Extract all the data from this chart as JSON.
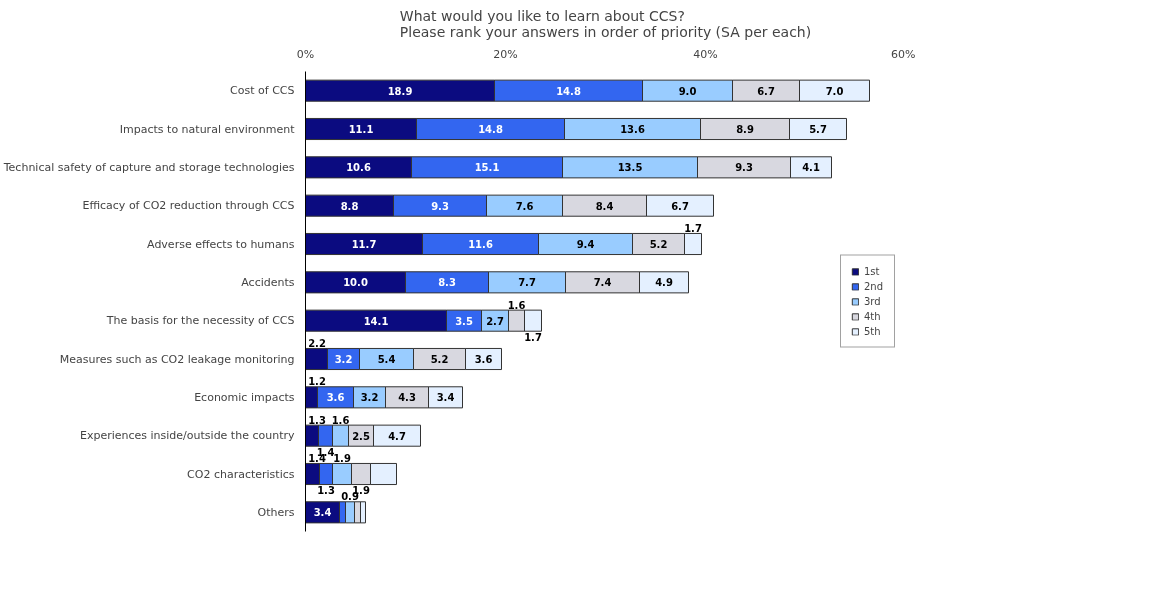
{
  "chart_data": {
    "type": "bar",
    "orientation": "horizontal",
    "stacked": true,
    "title": "What would you like to learn about CCS?\nPlease rank your answers in order of priority (SA per each)",
    "categories": [
      "Cost of CCS",
      "Impacts to natural environment",
      "Technical safety of capture and storage technologies",
      "Efficacy of CO2 reduction through CCS",
      "Adverse effects to humans",
      "Accidents",
      "The basis for the necessity of CCS",
      "Measures such as CO2 leakage monitoring",
      "Economic impacts",
      "Experiences inside/outside the country",
      "CO2 characteristics",
      "Others"
    ],
    "series": [
      {
        "name": "1st",
        "color": "#0b0b80",
        "values": [
          18.9,
          11.1,
          10.6,
          8.8,
          11.7,
          10.0,
          14.1,
          2.2,
          1.2,
          1.3,
          1.4,
          3.4
        ],
        "value_labels": [
          "18.9",
          "11.1",
          "10.6",
          "8.8",
          "11.7",
          "10.0",
          "14.1",
          "2.2",
          "1.2",
          "1.3",
          "1.4",
          "3.4"
        ]
      },
      {
        "name": "2nd",
        "color": "#3366f0",
        "values": [
          14.8,
          14.8,
          15.1,
          9.3,
          11.6,
          8.3,
          3.5,
          3.2,
          3.6,
          1.4,
          1.3,
          0.6
        ],
        "value_labels": [
          "14.8",
          "14.8",
          "15.1",
          "9.3",
          "11.6",
          "8.3",
          "3.5",
          "3.2",
          "3.6",
          "1.4",
          "1.3",
          null
        ]
      },
      {
        "name": "3rd",
        "color": "#99ccff",
        "values": [
          9.0,
          13.6,
          13.5,
          7.6,
          9.4,
          7.7,
          2.7,
          5.4,
          3.2,
          1.6,
          1.9,
          0.9
        ],
        "value_labels": [
          "9.0",
          "13.6",
          "13.5",
          "7.6",
          "9.4",
          "7.7",
          "2.7",
          "5.4",
          "3.2",
          "1.6",
          "1.9",
          "0.9"
        ]
      },
      {
        "name": "4th",
        "color": "#d8d8e0",
        "values": [
          6.7,
          8.9,
          9.3,
          8.4,
          5.2,
          7.4,
          1.6,
          5.2,
          4.3,
          2.5,
          1.9,
          0.6
        ],
        "value_labels": [
          "6.7",
          "8.9",
          "9.3",
          "8.4",
          "5.2",
          "7.4",
          "1.6",
          "5.2",
          "4.3",
          "2.5",
          "1.9",
          null
        ]
      },
      {
        "name": "5th",
        "color": "#e4f0ff",
        "values": [
          7.0,
          5.7,
          4.1,
          6.7,
          1.7,
          4.9,
          1.7,
          3.6,
          3.4,
          4.7,
          2.6,
          0.5
        ],
        "value_labels": [
          "7.0",
          "5.7",
          "4.1",
          "6.7",
          "1.7",
          "4.9",
          "1.7",
          "3.6",
          "3.4",
          "4.7",
          null,
          null
        ]
      }
    ],
    "xlim": [
      0,
      60
    ],
    "xticks": [
      {
        "value": 0,
        "label": "0%"
      },
      {
        "value": 20,
        "label": "20%"
      },
      {
        "value": 40,
        "label": "40%"
      },
      {
        "value": 60,
        "label": "60%"
      }
    ],
    "grid": false,
    "legend": "right"
  }
}
